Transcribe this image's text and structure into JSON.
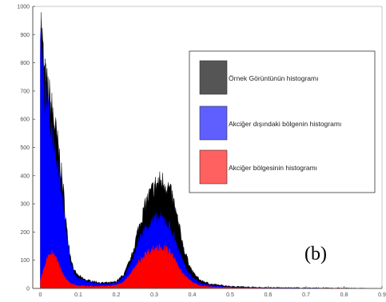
{
  "chart_data": {
    "type": "area",
    "title": "",
    "xlabel": "",
    "ylabel": "",
    "xlim": [
      -0.02,
      0.9
    ],
    "ylim": [
      0,
      1000
    ],
    "x_ticks": [
      "0",
      "0.1",
      "0.2",
      "0.3",
      "0.4",
      "0.5",
      "0.6",
      "0.7",
      "0.8",
      "0.9"
    ],
    "y_ticks": [
      "0",
      "100",
      "200",
      "300",
      "400",
      "500",
      "600",
      "700",
      "800",
      "900",
      "1000"
    ],
    "grid": false,
    "legend_position": "right",
    "panel_label": "(b)",
    "x": [
      0.0,
      0.01,
      0.02,
      0.03,
      0.04,
      0.05,
      0.06,
      0.07,
      0.08,
      0.09,
      0.1,
      0.12,
      0.14,
      0.16,
      0.18,
      0.2,
      0.22,
      0.24,
      0.26,
      0.28,
      0.3,
      0.31,
      0.32,
      0.33,
      0.34,
      0.35,
      0.36,
      0.38,
      0.4,
      0.42,
      0.45,
      0.5,
      0.55,
      0.6,
      0.7,
      0.8,
      0.86
    ],
    "series": [
      {
        "name": "Örnek Görüntünün histogramı",
        "color": "#000000",
        "values": [
          990,
          760,
          700,
          640,
          560,
          470,
          350,
          200,
          110,
          60,
          45,
          30,
          25,
          20,
          20,
          25,
          50,
          110,
          220,
          310,
          360,
          375,
          380,
          370,
          350,
          310,
          250,
          130,
          60,
          30,
          15,
          8,
          5,
          3,
          2,
          1,
          0
        ]
      },
      {
        "name": "Akciğer dışındaki bölgenin histogramı",
        "color": "#0000ff",
        "values": [
          900,
          690,
          620,
          560,
          490,
          410,
          300,
          170,
          90,
          50,
          35,
          25,
          20,
          15,
          15,
          20,
          40,
          90,
          170,
          220,
          240,
          245,
          245,
          235,
          220,
          190,
          150,
          80,
          40,
          20,
          10,
          5,
          3,
          2,
          1,
          0,
          0
        ]
      },
      {
        "name": "Akciğer bölgesinin histogramı",
        "color": "#ff0000",
        "values": [
          30,
          70,
          115,
          125,
          110,
          80,
          50,
          30,
          18,
          12,
          10,
          8,
          8,
          8,
          9,
          12,
          25,
          55,
          95,
          125,
          140,
          145,
          145,
          140,
          130,
          110,
          85,
          45,
          22,
          10,
          5,
          3,
          2,
          1,
          0,
          0,
          0
        ]
      }
    ]
  },
  "legend": {
    "colors": [
      "#555555",
      "#5f5fff",
      "#ff6060"
    ]
  }
}
